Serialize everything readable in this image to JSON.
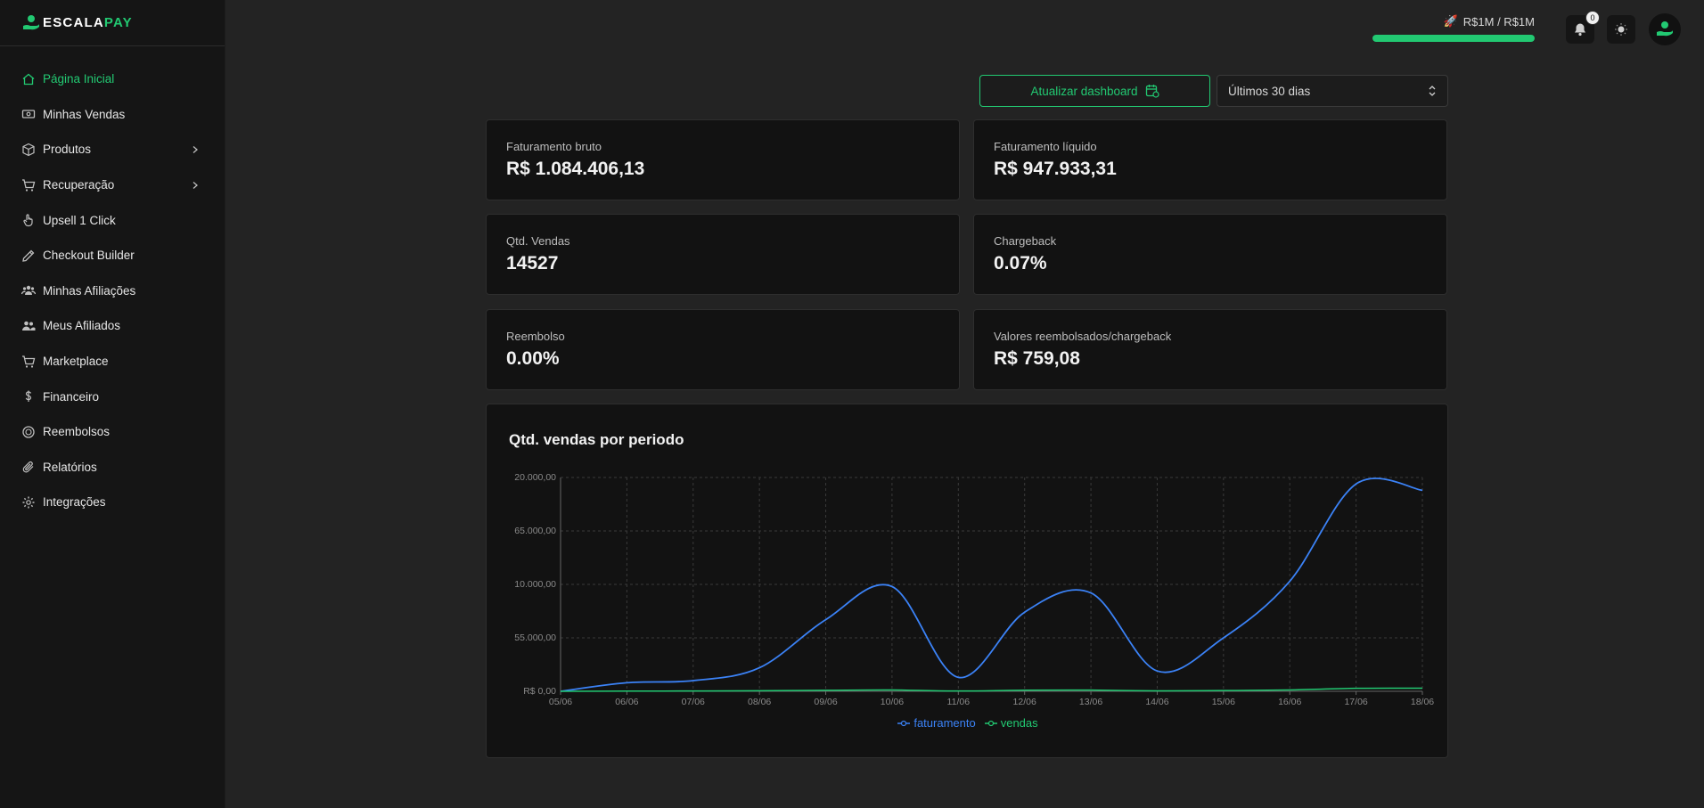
{
  "app": {
    "logo_text_main": "ESCALA",
    "logo_text_accent": "PAY"
  },
  "colors": {
    "accent": "#22c972",
    "faturamento": "#3b82f6",
    "vendas": "#22c972"
  },
  "sidebar": {
    "items": [
      {
        "label": "Página Inicial",
        "icon": "home-icon",
        "active": true,
        "chevron": false
      },
      {
        "label": "Minhas Vendas",
        "icon": "cash-icon",
        "active": false,
        "chevron": false
      },
      {
        "label": "Produtos",
        "icon": "box-icon",
        "active": false,
        "chevron": true
      },
      {
        "label": "Recuperação",
        "icon": "cart-icon",
        "active": false,
        "chevron": true
      },
      {
        "label": "Upsell 1 Click",
        "icon": "hand-pointer-icon",
        "active": false,
        "chevron": false
      },
      {
        "label": "Checkout Builder",
        "icon": "edit-icon",
        "active": false,
        "chevron": false
      },
      {
        "label": "Minhas Afiliações",
        "icon": "users-group-icon",
        "active": false,
        "chevron": false
      },
      {
        "label": "Meus Afiliados",
        "icon": "users-icon",
        "active": false,
        "chevron": false
      },
      {
        "label": "Marketplace",
        "icon": "cart-icon",
        "active": false,
        "chevron": false
      },
      {
        "label": "Financeiro",
        "icon": "dollar-icon",
        "active": false,
        "chevron": false
      },
      {
        "label": "Reembolsos",
        "icon": "coin-icon",
        "active": false,
        "chevron": false
      },
      {
        "label": "Relatórios",
        "icon": "paperclip-icon",
        "active": false,
        "chevron": false
      },
      {
        "label": "Integrações",
        "icon": "gear-icon",
        "active": false,
        "chevron": false
      }
    ]
  },
  "header": {
    "goal_text": "R$1M / R$1M",
    "goal_progress": 1.0,
    "notification_count": "0"
  },
  "controls": {
    "update_label": "Atualizar dashboard",
    "period_value": "Últimos 30 dias"
  },
  "cards": {
    "gross_label": "Faturamento bruto",
    "gross_value": "R$ 1.084.406,13",
    "net_label": "Faturamento líquido",
    "net_value": "R$ 947.933,31",
    "sales_label": "Qtd. Vendas",
    "sales_value": "14527",
    "chargeback_label": "Chargeback",
    "chargeback_value": "0.07%",
    "refund_label": "Reembolso",
    "refund_value": "0.00%",
    "refunded_values_label": "Valores reembolsados/chargeback",
    "refunded_values_value": "R$ 759,08"
  },
  "chart_data": {
    "type": "line",
    "title": "Qtd. vendas por periodo",
    "x": [
      "05/06",
      "06/06",
      "07/06",
      "08/06",
      "09/06",
      "10/06",
      "11/06",
      "12/06",
      "13/06",
      "14/06",
      "15/06",
      "16/06",
      "17/06",
      "18/06"
    ],
    "y_tick_labels": [
      "R$ 0,00",
      "55.000,00",
      "10.000,00",
      "65.000,00",
      "20.000,00"
    ],
    "ylim": [
      0,
      200000
    ],
    "grid": true,
    "legend_position": "bottom-center",
    "series": [
      {
        "name": "faturamento",
        "values": [
          0,
          8000,
          10000,
          22000,
          67000,
          98000,
          13000,
          74000,
          92000,
          19000,
          50000,
          103000,
          194000,
          188000
        ]
      },
      {
        "name": "vendas",
        "values": [
          0,
          200,
          300,
          500,
          900,
          1200,
          300,
          1000,
          1100,
          400,
          700,
          1300,
          2800,
          2900
        ]
      }
    ]
  }
}
